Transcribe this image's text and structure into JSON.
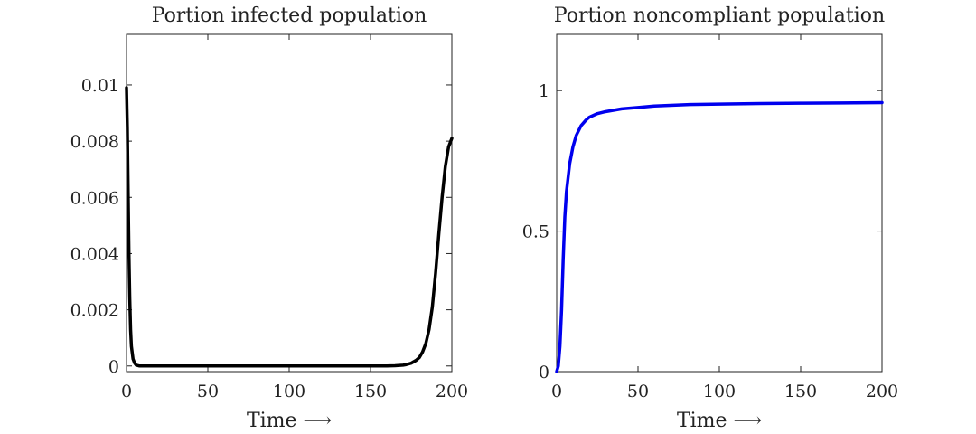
{
  "chart_data": [
    {
      "type": "line",
      "title": "Portion infected population",
      "xlabel": "Time ⟶",
      "ylabel": "",
      "xlim": [
        0,
        200
      ],
      "ylim": [
        -0.0002,
        0.0118
      ],
      "xticks": [
        0,
        50,
        100,
        150,
        200
      ],
      "xtick_labels": [
        "0",
        "50",
        "100",
        "150",
        "200"
      ],
      "yticks": [
        0,
        0.002,
        0.004,
        0.006,
        0.008,
        0.01
      ],
      "ytick_labels": [
        "0",
        "0.002",
        "0.004",
        "0.006",
        "0.008",
        "0.01"
      ],
      "grid": false,
      "series": [
        {
          "color": "#000000",
          "x": [
            0,
            0.5,
            1,
            1.5,
            2,
            2.5,
            3,
            4,
            5,
            6,
            8,
            10,
            20,
            50,
            100,
            150,
            160,
            165,
            170,
            172,
            175,
            178,
            180,
            182,
            184,
            186,
            188,
            190,
            192,
            194,
            196,
            198,
            200
          ],
          "y": [
            0.0099,
            0.0085,
            0.0062,
            0.004,
            0.0024,
            0.0013,
            0.0007,
            0.00025,
            0.0001,
            3e-05,
            0.0,
            0.0,
            0.0,
            0.0,
            0.0,
            0.0,
            0.0,
            1e-05,
            3e-05,
            5e-05,
            0.0001,
            0.0002,
            0.0003,
            0.0005,
            0.0008,
            0.0013,
            0.0021,
            0.0033,
            0.0047,
            0.006,
            0.0071,
            0.0078,
            0.0081
          ]
        }
      ]
    },
    {
      "type": "line",
      "title": "Portion noncompliant population",
      "xlabel": "Time ⟶",
      "ylabel": "",
      "xlim": [
        0,
        200
      ],
      "ylim": [
        0,
        1.2
      ],
      "xticks": [
        0,
        50,
        100,
        150,
        200
      ],
      "xtick_labels": [
        "0",
        "50",
        "100",
        "150",
        "200"
      ],
      "yticks": [
        0,
        0.5,
        1
      ],
      "ytick_labels": [
        "0",
        "0.5",
        "1"
      ],
      "grid": false,
      "series": [
        {
          "color": "#0000ee",
          "x": [
            0,
            1,
            2,
            3,
            4,
            5,
            6,
            8,
            10,
            12,
            15,
            18,
            20,
            25,
            30,
            40,
            50,
            60,
            80,
            100,
            125,
            150,
            175,
            200
          ],
          "y": [
            0.0,
            0.02,
            0.09,
            0.22,
            0.4,
            0.55,
            0.64,
            0.74,
            0.8,
            0.84,
            0.875,
            0.895,
            0.905,
            0.918,
            0.925,
            0.935,
            0.94,
            0.945,
            0.95,
            0.952,
            0.954,
            0.955,
            0.956,
            0.957
          ]
        }
      ]
    }
  ]
}
